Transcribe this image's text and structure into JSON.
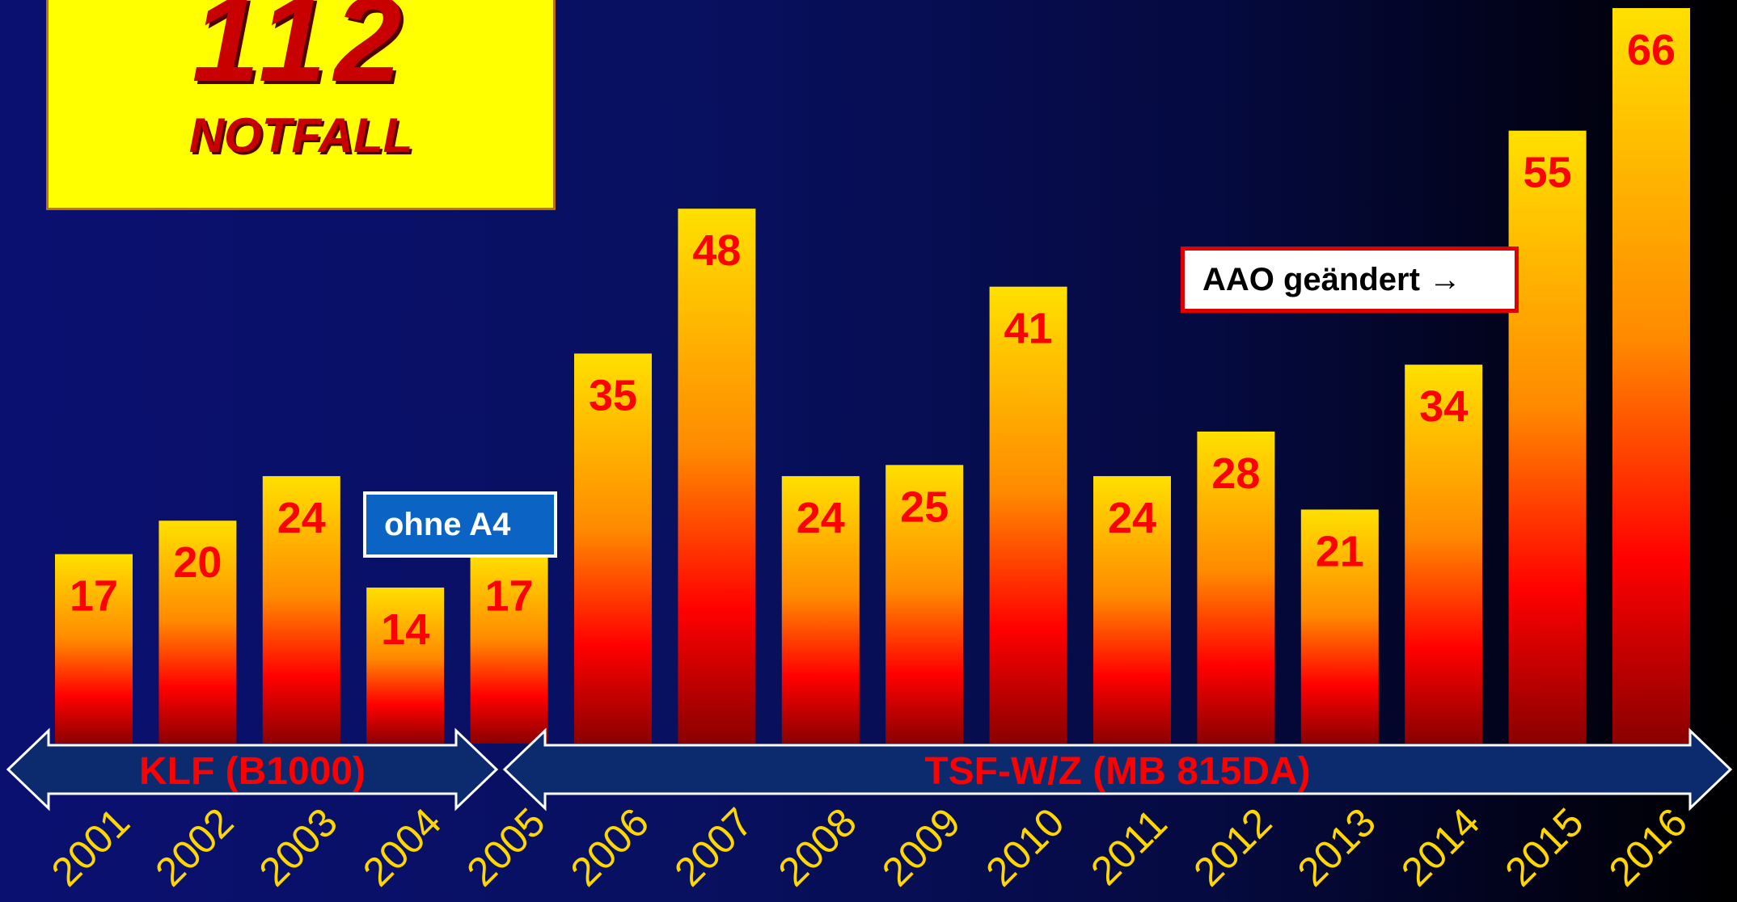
{
  "logo": {
    "number": "112",
    "caption": "NOTFALL"
  },
  "annotations": {
    "no_a4": "ohne A4",
    "aao_changed": "AAO geändert →"
  },
  "vehicle_periods": [
    {
      "label": "KLF (B1000)",
      "from": "2001",
      "to": "2005"
    },
    {
      "label": "TSF-W/Z (MB 815DA)",
      "from": "2006",
      "to": "2016"
    }
  ],
  "colors": {
    "bar_top": "#ffe000",
    "bar_mid": "#ff0000",
    "bar_bottom": "#8a0000",
    "value_label": "#ff0000",
    "year_label": "#ffd700",
    "period_label": "#ff0000",
    "arrow_fill": "#0c2a6e"
  },
  "chart_data": {
    "type": "bar",
    "title": "",
    "xlabel": "",
    "ylabel": "",
    "categories": [
      "2001",
      "2002",
      "2003",
      "2004",
      "2005",
      "2006",
      "2007",
      "2008",
      "2009",
      "2010",
      "2011",
      "2012",
      "2013",
      "2014",
      "2015",
      "2016"
    ],
    "values": [
      17,
      20,
      24,
      14,
      17,
      35,
      48,
      24,
      25,
      41,
      24,
      28,
      21,
      34,
      55,
      66
    ],
    "ylim": [
      0,
      66
    ],
    "grid": false,
    "legend": "none"
  }
}
